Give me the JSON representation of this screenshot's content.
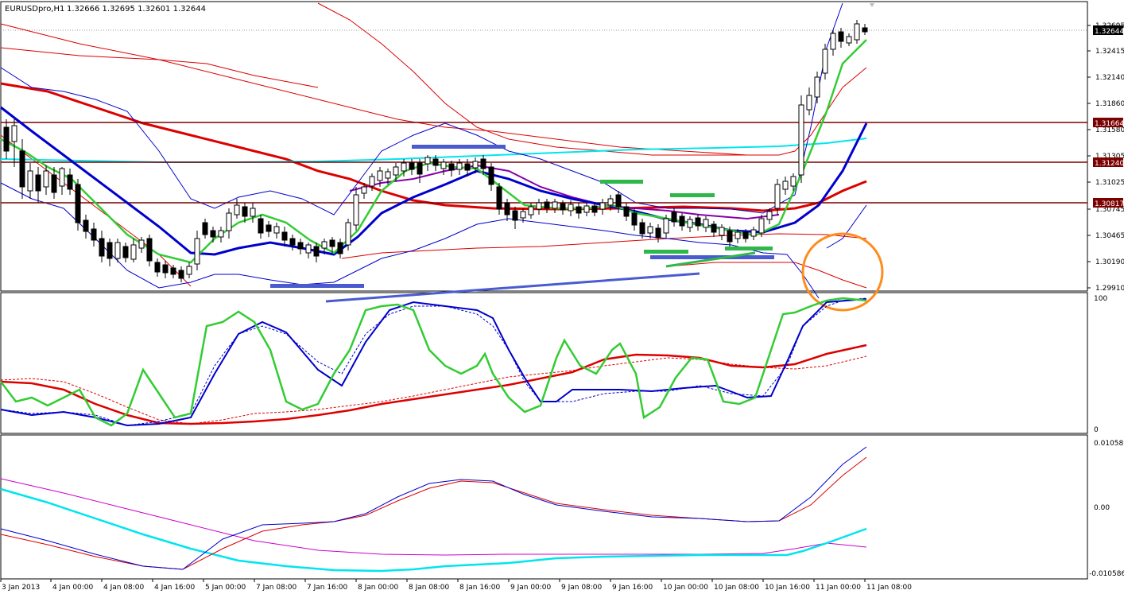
{
  "header": {
    "symbol": "EURUSDpro,H1",
    "ohlc": "1.32666 1.32695 1.32601 1.32644"
  },
  "price_pane": {
    "axis_labels": [
      "1.32695",
      "1.32415",
      "1.32140",
      "1.31860",
      "1.31580",
      "1.31305",
      "1.31025",
      "1.30745",
      "1.30465",
      "1.30190",
      "1.29910"
    ],
    "current_price": "1.32644",
    "levels": [
      {
        "label": "1.31664",
        "color": "#7b0000"
      },
      {
        "label": "1.31240",
        "color": "#7b0000"
      },
      {
        "label": "1.30817",
        "color": "#7b0000"
      }
    ]
  },
  "stoch_pane": {
    "axis_labels": [
      "100",
      "0"
    ]
  },
  "macd_pane": {
    "axis_labels": [
      "0.010589",
      "0.00",
      "-0.010586"
    ]
  },
  "time_axis": {
    "labels": [
      "3 Jan 2013",
      "4 Jan 00:00",
      "4 Jan 08:00",
      "4 Jan 16:00",
      "5 Jan 00:00",
      "7 Jan 08:00",
      "7 Jan 16:00",
      "8 Jan 00:00",
      "8 Jan 08:00",
      "8 Jan 16:00",
      "9 Jan 00:00",
      "9 Jan 08:00",
      "9 Jan 16:00",
      "10 Jan 00:00",
      "10 Jan 08:00",
      "10 Jan 16:00",
      "11 Jan 00:00",
      "11 Jan 08:00"
    ]
  },
  "colors": {
    "resistance": "#7b0000",
    "candle": "#000000",
    "ma_green": "#33cc33",
    "ma_blue": "#0000cc",
    "ma_red": "#dd0000",
    "cyan": "#00e5ee",
    "magenta": "#cc00cc",
    "annotation_orange": "#ff8c1a"
  }
}
